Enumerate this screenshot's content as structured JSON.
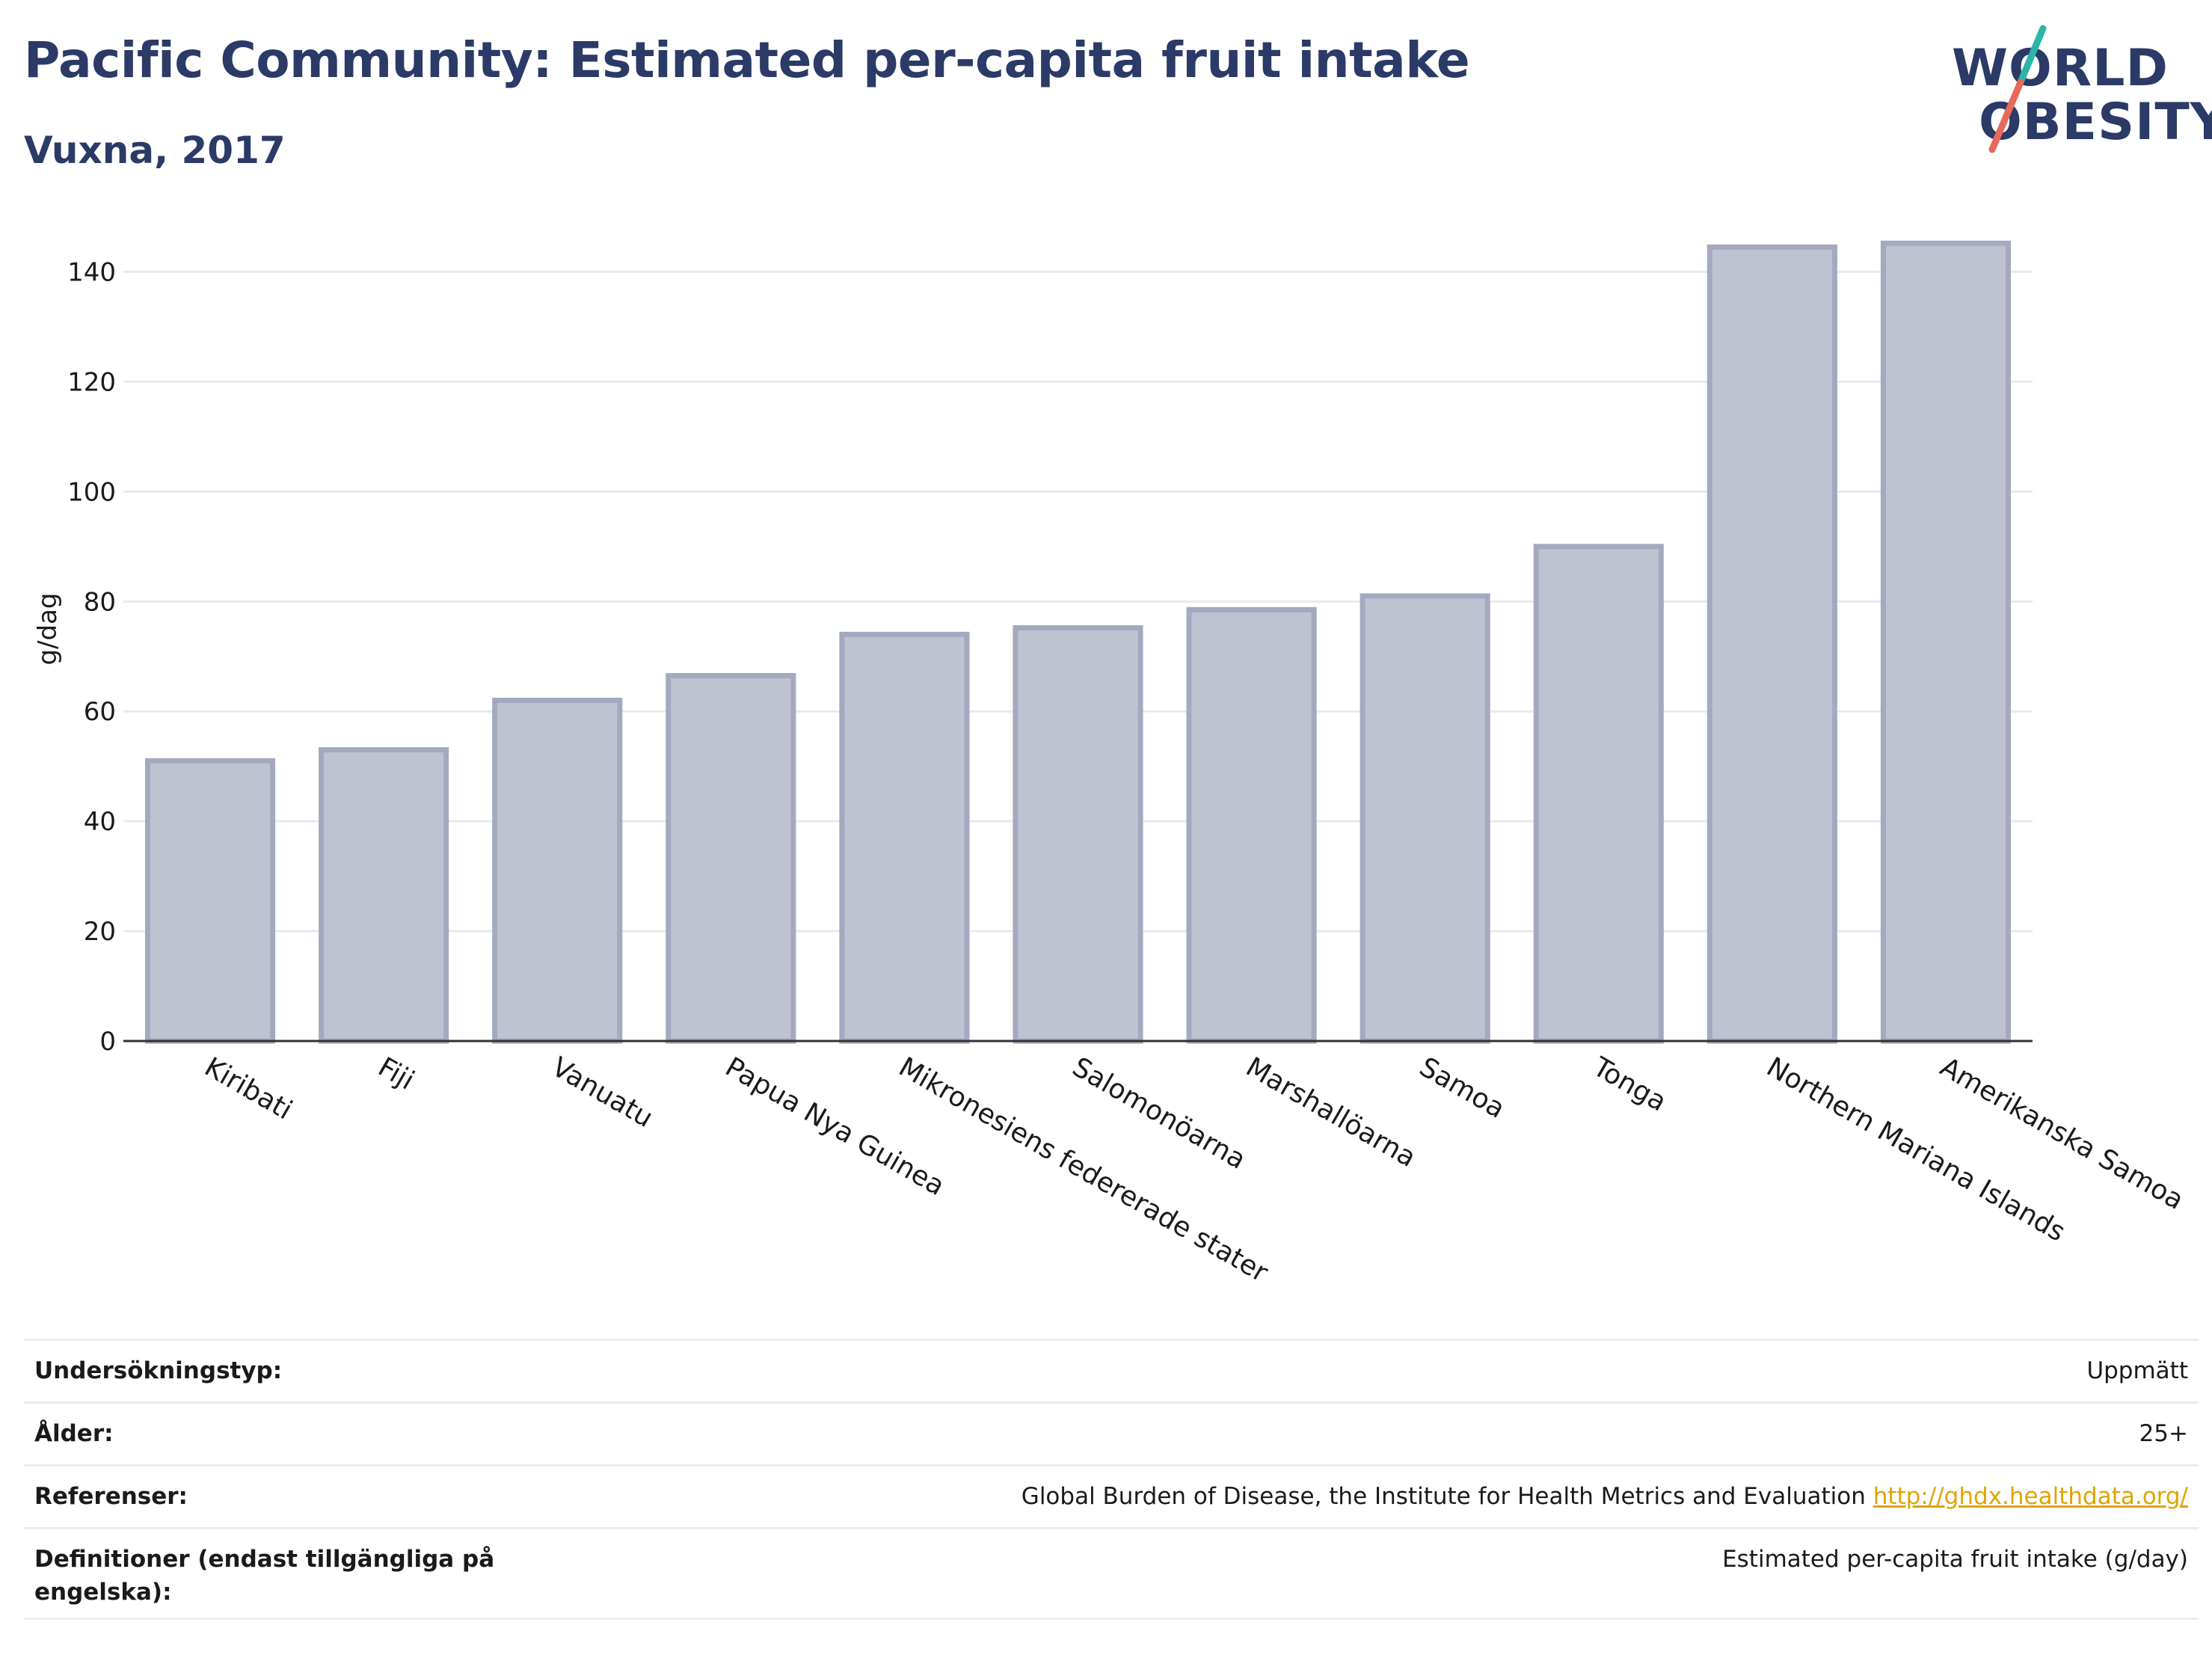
{
  "header": {
    "title": "Pacific Community: Estimated per-capita fruit intake",
    "subtitle": "Vuxna, 2017"
  },
  "logo": {
    "line1": "WORLD",
    "line2": "OBESITY",
    "accent_colors": [
      "#2bb5a8",
      "#e8685a"
    ]
  },
  "chart_data": {
    "type": "bar",
    "categories": [
      "Kiribati",
      "Fiji",
      "Vanuatu",
      "Papua Nya Guinea",
      "Mikronesiens federerade stater",
      "Salomonöarna",
      "Marshallöarna",
      "Samoa",
      "Tonga",
      "Northern Mariana Islands",
      "Amerikanska Samoa"
    ],
    "values": [
      51,
      53,
      62,
      66.5,
      74,
      75.2,
      78.5,
      81,
      90,
      144.5,
      145.2
    ],
    "ylabel": "g/dag",
    "xlabel": "",
    "ylim": [
      0,
      150
    ],
    "yticks": [
      0,
      20,
      40,
      60,
      80,
      100,
      120,
      140
    ],
    "grid": true,
    "bar_fill": "#bfc3d1",
    "bar_stroke": "#a4a9c0"
  },
  "meta": {
    "rows": [
      {
        "label": "Undersökningstyp:",
        "value": "Uppmätt",
        "link": ""
      },
      {
        "label": "Ålder:",
        "value": "25+",
        "link": ""
      },
      {
        "label": "Referenser:",
        "value": "Global Burden of Disease, the Institute for Health Metrics and Evaluation",
        "link": "http://ghdx.healthdata.org/"
      },
      {
        "label": "Definitioner (endast tillgängliga på engelska):",
        "value": "Estimated per-capita fruit intake (g/day)",
        "link": ""
      }
    ]
  }
}
